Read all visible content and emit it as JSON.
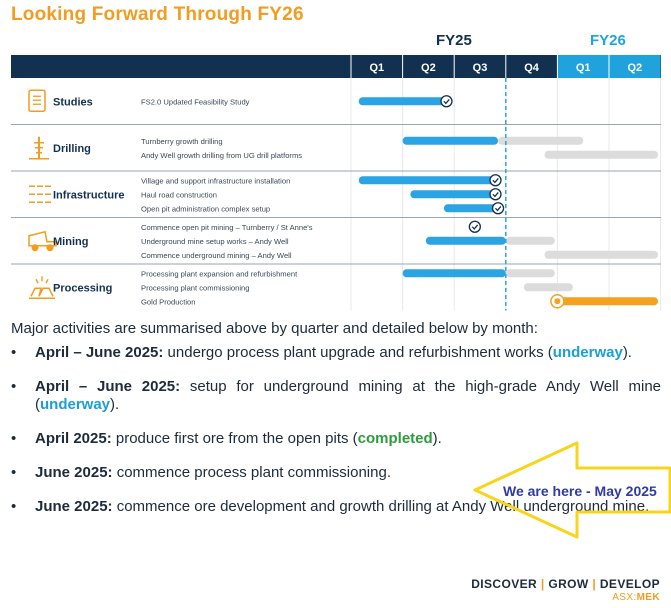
{
  "title": "Looking Forward Through FY26",
  "chart_data": {
    "type": "gantt",
    "fiscal_years": [
      {
        "label": "FY25",
        "color": "#12304f",
        "quarters": [
          "Q1",
          "Q2",
          "Q3",
          "Q4"
        ]
      },
      {
        "label": "FY26",
        "color": "#20a3dc",
        "quarters": [
          "Q1",
          "Q2"
        ]
      }
    ],
    "current_marker_quarter": 3.0,
    "categories": [
      {
        "name": "Studies",
        "icon": "document-icon",
        "activities": [
          {
            "label": "FS2.0 Updated Feasibility Study",
            "bars": [
              {
                "start": 0.15,
                "end": 1.85,
                "status": "done"
              }
            ],
            "check": 1.85
          }
        ]
      },
      {
        "name": "Drilling",
        "icon": "drill-rig-icon",
        "activities": [
          {
            "label": "Turnberry growth drilling",
            "bars": [
              {
                "start": 1.0,
                "end": 2.85,
                "status": "done"
              },
              {
                "start": 2.85,
                "end": 4.5,
                "status": "planned"
              }
            ]
          },
          {
            "label": "Andy Well growth drilling from UG drill platforms",
            "bars": [
              {
                "start": 3.75,
                "end": 5.95,
                "status": "planned"
              }
            ]
          }
        ]
      },
      {
        "name": "Infrastructure",
        "icon": "infrastructure-icon",
        "activities": [
          {
            "label": "Village and support infrastructure installation",
            "bars": [
              {
                "start": 0.15,
                "end": 2.8,
                "status": "done"
              }
            ],
            "check": 2.8
          },
          {
            "label": "Haul road construction",
            "bars": [
              {
                "start": 1.15,
                "end": 2.8,
                "status": "done"
              }
            ],
            "check": 2.8
          },
          {
            "label": "Open pit administration complex setup",
            "bars": [
              {
                "start": 1.8,
                "end": 2.85,
                "status": "done"
              }
            ],
            "check": 2.85
          }
        ]
      },
      {
        "name": "Mining",
        "icon": "haul-truck-icon",
        "activities": [
          {
            "label": "Commence open pit mining – Turnberry / St Anne's",
            "bars": [],
            "check": 2.4
          },
          {
            "label": "Underground mine setup works – Andy Well",
            "bars": [
              {
                "start": 1.45,
                "end": 3.0,
                "status": "done"
              },
              {
                "start": 3.0,
                "end": 3.95,
                "status": "planned"
              }
            ]
          },
          {
            "label": "Commence underground mining – Andy Well",
            "bars": [
              {
                "start": 3.75,
                "end": 5.95,
                "status": "planned"
              }
            ]
          }
        ]
      },
      {
        "name": "Processing",
        "icon": "processing-plant-icon",
        "activities": [
          {
            "label": "Processing plant expansion and refurbishment",
            "bars": [
              {
                "start": 1.0,
                "end": 3.0,
                "status": "done"
              },
              {
                "start": 3.0,
                "end": 3.95,
                "status": "planned"
              }
            ]
          },
          {
            "label": "Processing plant commissioning",
            "bars": [
              {
                "start": 3.35,
                "end": 4.3,
                "status": "planned"
              }
            ]
          },
          {
            "label": "Gold Production",
            "bars": [
              {
                "start": 4.0,
                "end": 5.95,
                "status": "production"
              }
            ],
            "gold_marker": 4.0
          }
        ]
      }
    ],
    "colors": {
      "header": "#12304f",
      "done": "#2aa4e3",
      "planned": "#dcdcdc",
      "production": "#f4a21e",
      "check": "#12304f",
      "marker": "#2aa4e3"
    }
  },
  "intro": "Major activities are summarised above by quarter and detailed below by month:",
  "bullets": [
    {
      "date": "April – June 2025:",
      "text_a": " undergo process plant upgrade and refurbishment works (",
      "status": "underway",
      "status_type": "blue",
      "text_b": ")."
    },
    {
      "date": "April – June 2025:",
      "text_a": " setup for underground mining at the high-grade Andy Well mine (",
      "status": "underway",
      "status_type": "blue",
      "text_b": ")."
    },
    {
      "date": "April 2025:",
      "text_a": " produce first ore from the open pits (",
      "status": "completed",
      "status_type": "green",
      "text_b": ")."
    },
    {
      "date": "June 2025:",
      "text_a": " commence process plant commissioning.",
      "status": "",
      "status_type": "",
      "text_b": ""
    },
    {
      "date": "June 2025:",
      "text_a": " commence ore development and growth drilling at Andy Well underground mine.",
      "status": "",
      "status_type": "",
      "text_b": ""
    }
  ],
  "callout": "We are here - May 2025",
  "footer": {
    "tagline_parts": [
      "DISCOVER",
      "GROW",
      "DEVELOP"
    ],
    "separator": " | ",
    "ticker_prefix": "ASX:",
    "ticker": "MEK"
  }
}
